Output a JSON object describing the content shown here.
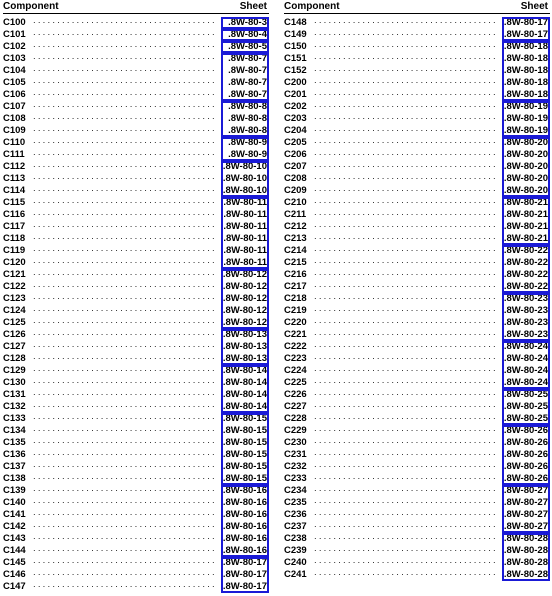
{
  "headers": {
    "component": "Component",
    "sheet": "Sheet"
  },
  "dots": "......................................",
  "box_color": "#1a1ad6",
  "left_column": [
    {
      "component": "C100",
      "sheet": ".8W-80-3"
    },
    {
      "component": "C101",
      "sheet": ".8W-80-4"
    },
    {
      "component": "C102",
      "sheet": ".8W-80-5"
    },
    {
      "component": "C103",
      "sheet": ".8W-80-7"
    },
    {
      "component": "C104",
      "sheet": ".8W-80-7"
    },
    {
      "component": "C105",
      "sheet": ".8W-80-7"
    },
    {
      "component": "C106",
      "sheet": ".8W-80-7"
    },
    {
      "component": "C107",
      "sheet": ".8W-80-8"
    },
    {
      "component": "C108",
      "sheet": ".8W-80-8"
    },
    {
      "component": "C109",
      "sheet": ".8W-80-8"
    },
    {
      "component": "C110",
      "sheet": ".8W-80-9"
    },
    {
      "component": "C111",
      "sheet": ".8W-80-9"
    },
    {
      "component": "C112",
      "sheet": ".8W-80-10"
    },
    {
      "component": "C113",
      "sheet": ".8W-80-10"
    },
    {
      "component": "C114",
      "sheet": ".8W-80-10"
    },
    {
      "component": "C115",
      "sheet": ".8W-80-11"
    },
    {
      "component": "C116",
      "sheet": ".8W-80-11"
    },
    {
      "component": "C117",
      "sheet": ".8W-80-11"
    },
    {
      "component": "C118",
      "sheet": ".8W-80-11"
    },
    {
      "component": "C119",
      "sheet": ".8W-80-11"
    },
    {
      "component": "C120",
      "sheet": ".8W-80-11"
    },
    {
      "component": "C121",
      "sheet": ".8W-80-12"
    },
    {
      "component": "C122",
      "sheet": ".8W-80-12"
    },
    {
      "component": "C123",
      "sheet": ".8W-80-12"
    },
    {
      "component": "C124",
      "sheet": ".8W-80-12"
    },
    {
      "component": "C125",
      "sheet": ".8W-80-12"
    },
    {
      "component": "C126",
      "sheet": ".8W-80-13"
    },
    {
      "component": "C127",
      "sheet": ".8W-80-13"
    },
    {
      "component": "C128",
      "sheet": ".8W-80-13"
    },
    {
      "component": "C129",
      "sheet": ".8W-80-14"
    },
    {
      "component": "C130",
      "sheet": ".8W-80-14"
    },
    {
      "component": "C131",
      "sheet": ".8W-80-14"
    },
    {
      "component": "C132",
      "sheet": ".8W-80-14"
    },
    {
      "component": "C133",
      "sheet": ".8W-80-15"
    },
    {
      "component": "C134",
      "sheet": ".8W-80-15"
    },
    {
      "component": "C135",
      "sheet": ".8W-80-15"
    },
    {
      "component": "C136",
      "sheet": ".8W-80-15"
    },
    {
      "component": "C137",
      "sheet": ".8W-80-15"
    },
    {
      "component": "C138",
      "sheet": ".8W-80-15"
    },
    {
      "component": "C139",
      "sheet": ".8W-80-16"
    },
    {
      "component": "C140",
      "sheet": ".8W-80-16"
    },
    {
      "component": "C141",
      "sheet": ".8W-80-16"
    },
    {
      "component": "C142",
      "sheet": ".8W-80-16"
    },
    {
      "component": "C143",
      "sheet": ".8W-80-16"
    },
    {
      "component": "C144",
      "sheet": ".8W-80-16"
    },
    {
      "component": "C145",
      "sheet": ".8W-80-17"
    },
    {
      "component": "C146",
      "sheet": ".8W-80-17"
    },
    {
      "component": "C147",
      "sheet": ".8W-80-17"
    }
  ],
  "right_column": [
    {
      "component": "C148",
      "sheet": ".8W-80-17"
    },
    {
      "component": "C149",
      "sheet": ".8W-80-17"
    },
    {
      "component": "C150",
      "sheet": ".8W-80-18"
    },
    {
      "component": "C151",
      "sheet": ".8W-80-18"
    },
    {
      "component": "C152",
      "sheet": ".8W-80-18"
    },
    {
      "component": "C200",
      "sheet": ".8W-80-18"
    },
    {
      "component": "C201",
      "sheet": ".8W-80-18"
    },
    {
      "component": "C202",
      "sheet": ".8W-80-19"
    },
    {
      "component": "C203",
      "sheet": ".8W-80-19"
    },
    {
      "component": "C204",
      "sheet": ".8W-80-19"
    },
    {
      "component": "C205",
      "sheet": ".8W-80-20"
    },
    {
      "component": "C206",
      "sheet": ".8W-80-20"
    },
    {
      "component": "C207",
      "sheet": ".8W-80-20"
    },
    {
      "component": "C208",
      "sheet": ".8W-80-20"
    },
    {
      "component": "C209",
      "sheet": ".8W-80-20"
    },
    {
      "component": "C210",
      "sheet": ".8W-80-21"
    },
    {
      "component": "C211",
      "sheet": ".8W-80-21"
    },
    {
      "component": "C212",
      "sheet": ".8W-80-21"
    },
    {
      "component": "C213",
      "sheet": ".8W-80-21"
    },
    {
      "component": "C214",
      "sheet": ".8W-80-22"
    },
    {
      "component": "C215",
      "sheet": ".8W-80-22"
    },
    {
      "component": "C216",
      "sheet": ".8W-80-22"
    },
    {
      "component": "C217",
      "sheet": ".8W-80-22"
    },
    {
      "component": "C218",
      "sheet": ".8W-80-23"
    },
    {
      "component": "C219",
      "sheet": ".8W-80-23"
    },
    {
      "component": "C220",
      "sheet": ".8W-80-23"
    },
    {
      "component": "C221",
      "sheet": ".8W-80-23"
    },
    {
      "component": "C222",
      "sheet": ".8W-80-24"
    },
    {
      "component": "C223",
      "sheet": ".8W-80-24"
    },
    {
      "component": "C224",
      "sheet": ".8W-80-24"
    },
    {
      "component": "C225",
      "sheet": ".8W-80-24"
    },
    {
      "component": "C226",
      "sheet": ".8W-80-25"
    },
    {
      "component": "C227",
      "sheet": ".8W-80-25"
    },
    {
      "component": "C228",
      "sheet": ".8W-80-25"
    },
    {
      "component": "C229",
      "sheet": ".8W-80-26"
    },
    {
      "component": "C230",
      "sheet": ".8W-80-26"
    },
    {
      "component": "C231",
      "sheet": ".8W-80-26"
    },
    {
      "component": "C232",
      "sheet": ".8W-80-26"
    },
    {
      "component": "C233",
      "sheet": ".8W-80-26"
    },
    {
      "component": "C234",
      "sheet": ".8W-80-27"
    },
    {
      "component": "C235",
      "sheet": ".8W-80-27"
    },
    {
      "component": "C236",
      "sheet": ".8W-80-27"
    },
    {
      "component": "C237",
      "sheet": ".8W-80-27"
    },
    {
      "component": "C238",
      "sheet": ".8W-80-28"
    },
    {
      "component": "C239",
      "sheet": ".8W-80-28"
    },
    {
      "component": "C240",
      "sheet": ".8W-80-28"
    },
    {
      "component": "C241",
      "sheet": ".8W-80-28"
    }
  ]
}
